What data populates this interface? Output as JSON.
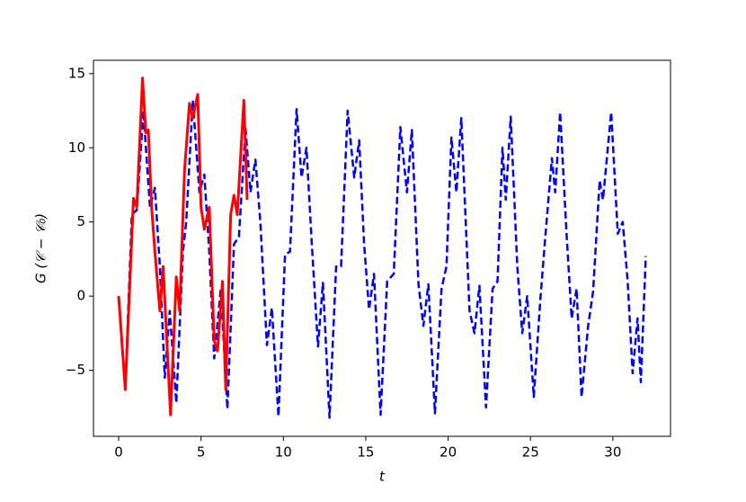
{
  "chart_data": {
    "type": "line",
    "xlabel": "t",
    "ylabel": "G (𝒞 − 𝒞₀)",
    "xlim": [
      -1.53,
      33.5
    ],
    "ylim": [
      -9.45,
      15.9
    ],
    "xticks": [
      0,
      5,
      10,
      15,
      20,
      25,
      30
    ],
    "yticks": [
      {
        "value": -5,
        "label": "−5"
      },
      0,
      5,
      10,
      15
    ],
    "series": [
      {
        "color": "#0000ff",
        "dash": true,
        "x": [
          0,
          0.4,
          0.8,
          1.1,
          1.5,
          1.9,
          2.2,
          2.5,
          2.8,
          3.1,
          3.5,
          3.9,
          4.1,
          4.5,
          4.9,
          5.2,
          5.5,
          5.8,
          6.2,
          6.6,
          7,
          7.3,
          7.7,
          8,
          8.3,
          8.6,
          9,
          9.3,
          9.7,
          10.1,
          10.4,
          10.8,
          11.1,
          11.4,
          11.7,
          12.1,
          12.4,
          12.8,
          13.2,
          13.5,
          13.9,
          14.3,
          14.6,
          14.9,
          15.2,
          15.5,
          15.9,
          16.3,
          16.7,
          17.1,
          17.5,
          17.8,
          18.2,
          18.5,
          18.8,
          19.2,
          19.6,
          19.9,
          20.2,
          20.5,
          20.8,
          21.3,
          21.6,
          21.9,
          22.3,
          22.7,
          23,
          23.3,
          23.5,
          23.8,
          24.2,
          24.5,
          24.8,
          25.2,
          25.6,
          25.9,
          26.3,
          26.5,
          26.8,
          27.2,
          27.5,
          27.8,
          28.1,
          28.5,
          28.8,
          29.2,
          29.4,
          29.9,
          30.3,
          30.6,
          30.9,
          31.2,
          31.5,
          31.7,
          32
        ],
        "values": [
          0,
          -6.3,
          5.5,
          5.8,
          12.5,
          6,
          7.3,
          2,
          -5.5,
          -1,
          -7.2,
          3,
          5,
          13.2,
          7,
          8.2,
          3,
          -4.2,
          0.5,
          -7.6,
          3.5,
          4,
          11.3,
          7,
          9.2,
          5,
          -3.3,
          -0.8,
          -8.1,
          2.8,
          3,
          12.6,
          8,
          10,
          4,
          -3.4,
          0.9,
          -8.2,
          2,
          2,
          12.5,
          8,
          10.5,
          3.5,
          -0.9,
          1.5,
          -8,
          1,
          1.5,
          11.4,
          7,
          11.2,
          0.8,
          -2,
          0.8,
          -7.9,
          0.5,
          2,
          10.7,
          7,
          12,
          -1,
          -2.5,
          0.7,
          -7.5,
          0.5,
          1,
          10,
          6.5,
          12.1,
          2,
          -2.5,
          0,
          -6.8,
          -0.2,
          4,
          9.3,
          7,
          12.4,
          4,
          -1.5,
          0.5,
          -6.8,
          -2,
          0.3,
          7.8,
          6.5,
          12.4,
          4.2,
          5,
          1,
          -5.2,
          -1.5,
          -5.8,
          2.7
        ]
      },
      {
        "color": "#ff0000",
        "dash": false,
        "x": [
          0,
          0.4,
          0.9,
          1.1,
          1.45,
          1.65,
          1.8,
          2,
          2.2,
          2.5,
          2.7,
          2.9,
          3.15,
          3.5,
          3.7,
          4,
          4.3,
          4.5,
          4.8,
          5,
          5.2,
          5.5,
          5.8,
          6,
          6.3,
          6.5,
          6.8,
          7,
          7.2,
          7.6,
          7.8
        ],
        "values": [
          0,
          -6.3,
          6.6,
          6,
          14.7,
          11,
          11.2,
          6,
          3,
          -1,
          2,
          -2.5,
          -8,
          1.3,
          -1,
          8.5,
          13,
          12,
          13.6,
          6,
          4.5,
          6,
          -3,
          -3.7,
          1,
          -6.3,
          5.5,
          6.8,
          5.5,
          13.2,
          6.5
        ]
      }
    ]
  }
}
